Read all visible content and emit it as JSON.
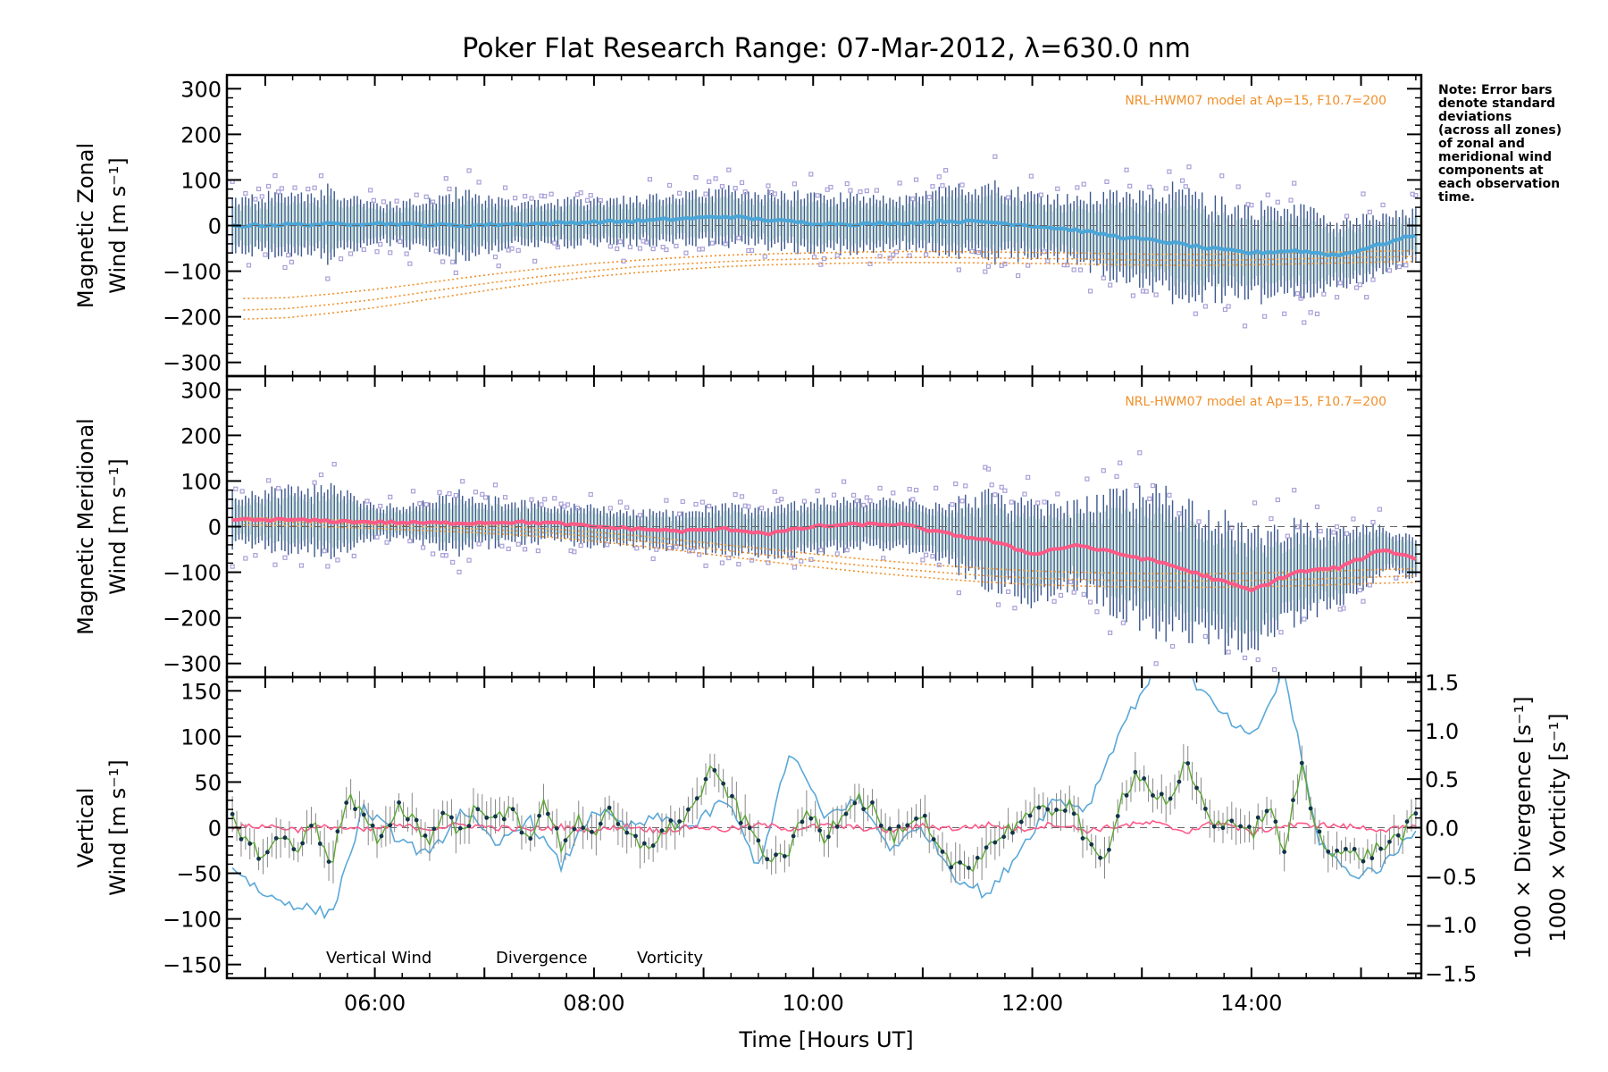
{
  "title": "Poker Flat Research Range: 07-Mar-2012, λ=630.0 nm",
  "note_lines": [
    "Note: Error bars",
    "denote standard",
    "deviations",
    "(across all zones)",
    "of zonal and",
    "meridional wind",
    "components at",
    "each observation",
    "time."
  ],
  "model_label": "NRL-HWM07 model at Ap=15, F10.7=200",
  "colors": {
    "zonal": "#4aa6d8",
    "meridional": "#ff5a86",
    "vertical": "#5aa832",
    "divergence": "#5aa8d8",
    "vorticity": "#ff5a8a",
    "model": "#f0902a",
    "scatter": "#a9a0d8",
    "errorbar": "#1a3a7a"
  },
  "x_axis": {
    "label": "Time [Hours UT]",
    "ticks": [
      "06:00",
      "08:00",
      "10:00",
      "12:00",
      "14:00"
    ]
  },
  "chart_data": [
    {
      "type": "scatter",
      "name": "zonal-panel",
      "ylabel_lines": [
        "Magnetic Zonal",
        "Wind [m s⁻¹]"
      ],
      "xlim": [
        4.65,
        15.55
      ],
      "ylim": [
        -330,
        330
      ],
      "yticks": [
        "300",
        "200",
        "100",
        "0",
        "−100",
        "−200",
        "−300"
      ],
      "model_label": "NRL-HWM07 model at Ap=15, F10.7=200",
      "x": [
        4.8,
        5.2,
        5.6,
        6.0,
        6.4,
        6.8,
        7.2,
        7.6,
        8.0,
        8.4,
        8.8,
        9.2,
        9.6,
        10.0,
        10.4,
        10.8,
        11.2,
        11.6,
        12.0,
        12.4,
        12.8,
        13.2,
        13.6,
        14.0,
        14.4,
        14.8,
        15.2,
        15.5
      ],
      "mean": [
        0,
        2,
        3,
        5,
        2,
        0,
        3,
        5,
        8,
        10,
        15,
        20,
        12,
        5,
        3,
        5,
        10,
        8,
        0,
        -10,
        -25,
        -35,
        -50,
        -60,
        -55,
        -65,
        -40,
        -20
      ],
      "spread": [
        70,
        80,
        90,
        50,
        60,
        90,
        60,
        55,
        60,
        60,
        60,
        70,
        70,
        75,
        70,
        60,
        80,
        100,
        80,
        80,
        110,
        140,
        120,
        120,
        110,
        90,
        70,
        60
      ],
      "model": [
        {
          "label": "",
          "values": [
            -160,
            -158,
            -150,
            -140,
            -128,
            -115,
            -103,
            -92,
            -83,
            -76,
            -70,
            -65,
            -62,
            -60,
            -58,
            -57,
            -57,
            -58,
            -59,
            -60,
            -62,
            -63,
            -63,
            -62,
            -60,
            -58,
            -56,
            -55
          ]
        },
        {
          "label": "",
          "values": [
            -185,
            -182,
            -173,
            -162,
            -148,
            -134,
            -121,
            -109,
            -99,
            -90,
            -84,
            -79,
            -75,
            -73,
            -71,
            -70,
            -70,
            -71,
            -72,
            -73,
            -75,
            -76,
            -76,
            -75,
            -73,
            -71,
            -69,
            -68
          ]
        },
        {
          "label": "",
          "values": [
            -205,
            -202,
            -192,
            -180,
            -165,
            -150,
            -136,
            -123,
            -112,
            -103,
            -96,
            -90,
            -86,
            -84,
            -82,
            -81,
            -81,
            -82,
            -83,
            -84,
            -86,
            -87,
            -87,
            -86,
            -84,
            -82,
            -80,
            -79
          ]
        }
      ]
    },
    {
      "type": "scatter",
      "name": "meridional-panel",
      "ylabel_lines": [
        "Magnetic Meridional",
        "Wind [m s⁻¹]"
      ],
      "xlim": [
        4.65,
        15.55
      ],
      "ylim": [
        -330,
        330
      ],
      "yticks": [
        "300",
        "200",
        "100",
        "0",
        "−100",
        "−200",
        "−300"
      ],
      "model_label": "NRL-HWM07 model at Ap=15, F10.7=200",
      "x": [
        4.8,
        5.2,
        5.6,
        6.0,
        6.4,
        6.8,
        7.2,
        7.6,
        8.0,
        8.4,
        8.8,
        9.2,
        9.6,
        10.0,
        10.4,
        10.8,
        11.2,
        11.6,
        12.0,
        12.4,
        12.8,
        13.2,
        13.6,
        14.0,
        14.4,
        14.8,
        15.2,
        15.5
      ],
      "mean": [
        15,
        15,
        12,
        10,
        8,
        8,
        10,
        8,
        0,
        -5,
        -10,
        -5,
        -15,
        0,
        5,
        5,
        -15,
        -30,
        -60,
        -40,
        -60,
        -80,
        -110,
        -140,
        -100,
        -90,
        -50,
        -70
      ],
      "spread": [
        70,
        80,
        90,
        40,
        50,
        80,
        50,
        50,
        50,
        45,
        50,
        60,
        60,
        70,
        60,
        60,
        80,
        120,
        120,
        100,
        150,
        180,
        170,
        150,
        120,
        90,
        60,
        50
      ],
      "model": [
        {
          "label": "",
          "values": [
            20,
            18,
            15,
            12,
            8,
            4,
            0,
            -5,
            -12,
            -20,
            -30,
            -40,
            -50,
            -60,
            -70,
            -78,
            -86,
            -92,
            -97,
            -100,
            -102,
            -103,
            -103,
            -102,
            -100,
            -97,
            -94,
            -92
          ]
        },
        {
          "label": "",
          "values": [
            12,
            10,
            7,
            4,
            0,
            -4,
            -8,
            -14,
            -22,
            -31,
            -41,
            -52,
            -63,
            -74,
            -84,
            -93,
            -101,
            -108,
            -113,
            -116,
            -118,
            -119,
            -119,
            -118,
            -116,
            -113,
            -110,
            -108
          ]
        },
        {
          "label": "",
          "values": [
            4,
            2,
            -1,
            -4,
            -8,
            -12,
            -17,
            -23,
            -32,
            -42,
            -53,
            -65,
            -77,
            -88,
            -98,
            -107,
            -115,
            -122,
            -127,
            -130,
            -132,
            -133,
            -133,
            -132,
            -130,
            -127,
            -124,
            -122
          ]
        }
      ]
    },
    {
      "type": "line",
      "name": "vertical-panel",
      "ylabel_left": [
        "Vertical",
        "Wind [m s⁻¹]"
      ],
      "ylabel_right1": "1000 × Divergence [s⁻¹]",
      "ylabel_right2": "1000 × Vorticity [s⁻¹]",
      "xlim": [
        4.65,
        15.55
      ],
      "ylim_left": [
        -165,
        165
      ],
      "ylim_right": [
        -1.55,
        1.55
      ],
      "yticks_left": [
        "150",
        "100",
        "50",
        "0",
        "−50",
        "−100",
        "−150"
      ],
      "yticks_right": [
        "1.5",
        "1.0",
        "0.5",
        "0.0",
        "−0.5",
        "−1.0",
        "−1.5"
      ],
      "legend": [
        "Vertical Wind",
        "Divergence",
        "Vorticity"
      ],
      "series": [
        {
          "name": "Vertical Wind",
          "x": [
            4.7,
            4.85,
            5.0,
            5.15,
            5.3,
            5.45,
            5.6,
            5.75,
            5.9,
            6.05,
            6.2,
            6.35,
            6.5,
            6.65,
            6.8,
            6.95,
            7.1,
            7.25,
            7.4,
            7.55,
            7.7,
            7.85,
            8.0,
            8.15,
            8.3,
            8.45,
            8.6,
            8.75,
            8.9,
            9.05,
            9.2,
            9.35,
            9.5,
            9.65,
            9.8,
            9.95,
            10.1,
            10.25,
            10.4,
            10.55,
            10.7,
            10.85,
            11.0,
            11.15,
            11.3,
            11.45,
            11.6,
            11.75,
            11.9,
            12.05,
            12.2,
            12.35,
            12.5,
            12.65,
            12.8,
            12.95,
            13.1,
            13.25,
            13.4,
            13.55,
            13.7,
            13.85,
            14.0,
            14.15,
            14.3,
            14.45,
            14.6,
            14.75,
            14.9,
            15.05,
            15.2,
            15.35,
            15.5
          ],
          "values": [
            15,
            -20,
            -30,
            -10,
            -20,
            5,
            -40,
            35,
            10,
            -20,
            25,
            10,
            -15,
            20,
            -10,
            30,
            5,
            20,
            -10,
            25,
            -20,
            10,
            -5,
            15,
            -10,
            -20,
            -10,
            5,
            20,
            60,
            45,
            10,
            -15,
            -40,
            -20,
            20,
            -10,
            15,
            35,
            20,
            -10,
            -5,
            10,
            -30,
            -40,
            -40,
            -20,
            -5,
            10,
            15,
            20,
            30,
            -20,
            -40,
            30,
            60,
            40,
            20,
            70,
            30,
            0,
            10,
            -10,
            25,
            -30,
            70,
            -5,
            -25,
            -30,
            -30,
            -20,
            -10,
            10
          ]
        },
        {
          "name": "Divergence",
          "x": [
            4.7,
            5.0,
            5.3,
            5.6,
            5.9,
            6.2,
            6.5,
            6.8,
            7.1,
            7.4,
            7.7,
            8.0,
            8.3,
            8.6,
            8.9,
            9.2,
            9.5,
            9.8,
            10.1,
            10.4,
            10.7,
            11.0,
            11.3,
            11.6,
            11.9,
            12.2,
            12.5,
            12.8,
            13.1,
            13.4,
            13.7,
            14.0,
            14.3,
            14.6,
            14.9,
            15.2,
            15.5
          ],
          "values": [
            -0.4,
            -0.7,
            -0.8,
            -0.9,
            0.2,
            -0.1,
            -0.3,
            0.2,
            -0.2,
            0.1,
            -0.4,
            0.2,
            0.0,
            0.1,
            0.0,
            0.3,
            -0.4,
            0.8,
            0.1,
            0.3,
            -0.2,
            0.0,
            -0.5,
            -0.7,
            -0.2,
            0.3,
            0.2,
            1.0,
            1.6,
            1.6,
            1.2,
            0.9,
            1.6,
            -0.1,
            -0.5,
            -0.4,
            0.0
          ]
        },
        {
          "name": "Vorticity",
          "x": [
            4.7,
            5.0,
            5.3,
            5.6,
            5.9,
            6.2,
            6.5,
            6.8,
            7.1,
            7.4,
            7.7,
            8.0,
            8.3,
            8.6,
            8.9,
            9.2,
            9.5,
            9.8,
            10.1,
            10.4,
            10.7,
            11.0,
            11.3,
            11.6,
            11.9,
            12.2,
            12.5,
            12.8,
            13.1,
            13.4,
            13.7,
            14.0,
            14.3,
            14.6,
            14.9,
            15.2,
            15.5
          ],
          "values": [
            0.0,
            0.02,
            -0.02,
            0.01,
            -0.03,
            0.02,
            -0.01,
            0.03,
            0.0,
            -0.02,
            0.01,
            -0.03,
            0.02,
            -0.04,
            0.01,
            -0.02,
            0.03,
            -0.01,
            0.02,
            0.0,
            -0.03,
            0.02,
            -0.01,
            0.03,
            -0.02,
            0.04,
            -0.03,
            0.02,
            0.05,
            -0.04,
            0.06,
            -0.05,
            0.02,
            0.03,
            0.01,
            -0.02,
            0.0
          ]
        }
      ]
    }
  ]
}
